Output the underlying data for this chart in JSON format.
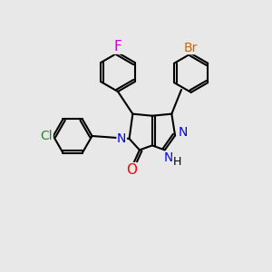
{
  "bg_color": "#e8e8e8",
  "bond_color": "#000000",
  "bond_width": 1.5,
  "atoms": {
    "F": {
      "color": "#cc00cc"
    },
    "Br": {
      "color": "#cc6600"
    },
    "Cl": {
      "color": "#228B22"
    },
    "N": {
      "color": "#0000ff"
    },
    "O": {
      "color": "#ff0000"
    },
    "H": {
      "color": "#000000"
    }
  }
}
